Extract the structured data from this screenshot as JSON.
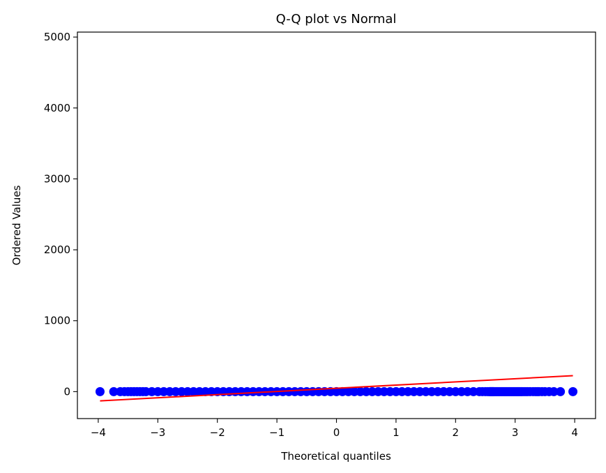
{
  "chart_data": {
    "type": "scatter",
    "title": "Q-Q plot vs Normal",
    "xlabel": "Theoretical quantiles",
    "ylabel": "Ordered Values",
    "xlim": [
      -4.35,
      4.35
    ],
    "ylim": [
      -380,
      5070
    ],
    "xticks": [
      -4,
      -3,
      -2,
      -1,
      0,
      1,
      2,
      3,
      4
    ],
    "xtick_labels": [
      "−4",
      "−3",
      "−2",
      "−1",
      "0",
      "1",
      "2",
      "3",
      "4"
    ],
    "yticks": [
      0,
      1000,
      2000,
      3000,
      4000,
      5000
    ],
    "ytick_labels": [
      "0",
      "1000",
      "2000",
      "3000",
      "4000",
      "5000"
    ],
    "grid": false,
    "legend": "none",
    "colors": {
      "points": "#0000ff",
      "fit_line": "#ff0000"
    },
    "series": [
      {
        "kind": "points",
        "x": [
          -3.97,
          -3.74,
          -3.63,
          -3.56,
          -3.5,
          -3.45,
          -3.4,
          -3.35,
          -3.3,
          -3.25,
          -3.2,
          -3.1,
          -3.0,
          -2.9,
          -2.8,
          -2.7,
          -2.6,
          -2.5,
          -2.4,
          -2.3,
          -2.2,
          -2.1,
          -2.0,
          -1.9,
          -1.8,
          -1.7,
          -1.6,
          -1.5,
          -1.4,
          -1.3,
          -1.2,
          -1.1,
          -1.0,
          -0.9,
          -0.8,
          -0.7,
          -0.6,
          -0.5,
          -0.4,
          -0.3,
          -0.2,
          -0.1,
          0.0,
          0.1,
          0.2,
          0.3,
          0.4,
          0.5,
          0.6,
          0.7,
          0.8,
          0.9,
          1.0,
          1.1,
          1.2,
          1.3,
          1.4,
          1.5,
          1.6,
          1.7,
          1.8,
          1.9,
          2.0,
          2.1,
          2.2,
          2.3,
          2.4,
          2.45,
          2.5,
          2.54,
          2.57,
          2.58,
          2.59,
          2.6,
          2.61,
          2.62,
          2.63,
          2.64,
          2.66,
          2.68,
          2.7,
          2.72,
          2.74,
          2.76,
          2.78,
          2.8,
          2.82,
          2.84,
          2.86,
          2.88,
          2.9,
          2.92,
          2.94,
          2.96,
          2.98,
          3.0,
          3.02,
          3.04,
          3.06,
          3.08,
          3.1,
          3.12,
          3.15,
          3.18,
          3.21,
          3.25,
          3.3,
          3.34,
          3.37,
          3.4,
          3.45,
          3.5,
          3.57,
          3.65,
          3.76,
          3.97
        ],
        "y": [
          0,
          0,
          0,
          0,
          0,
          0,
          0,
          0,
          0,
          0,
          0,
          0,
          0,
          0,
          0,
          0,
          0,
          0,
          0,
          0,
          0,
          0,
          0,
          0,
          0,
          0,
          0,
          0,
          0,
          0,
          0,
          0,
          0,
          0,
          0,
          0,
          0,
          0,
          0,
          0,
          0,
          0,
          0,
          0,
          0,
          0,
          0,
          0,
          0,
          0,
          0,
          0,
          0,
          0,
          0,
          0,
          0,
          0,
          0,
          0,
          0,
          0,
          0,
          0,
          0,
          0,
          0,
          0,
          0,
          0,
          0,
          0,
          0,
          0,
          0,
          0,
          0,
          0,
          0,
          0,
          0,
          0,
          0,
          0,
          0,
          0,
          0,
          0,
          0,
          0,
          0,
          0,
          0,
          0,
          0,
          0,
          0,
          0,
          0,
          0,
          0,
          0,
          0,
          0,
          0,
          0,
          0,
          0,
          0,
          0,
          0,
          0,
          0,
          0,
          0,
          0
        ]
      },
      {
        "kind": "fit_line",
        "x": [
          -3.97,
          3.97
        ],
        "y": [
          -130,
          225
        ]
      }
    ]
  }
}
